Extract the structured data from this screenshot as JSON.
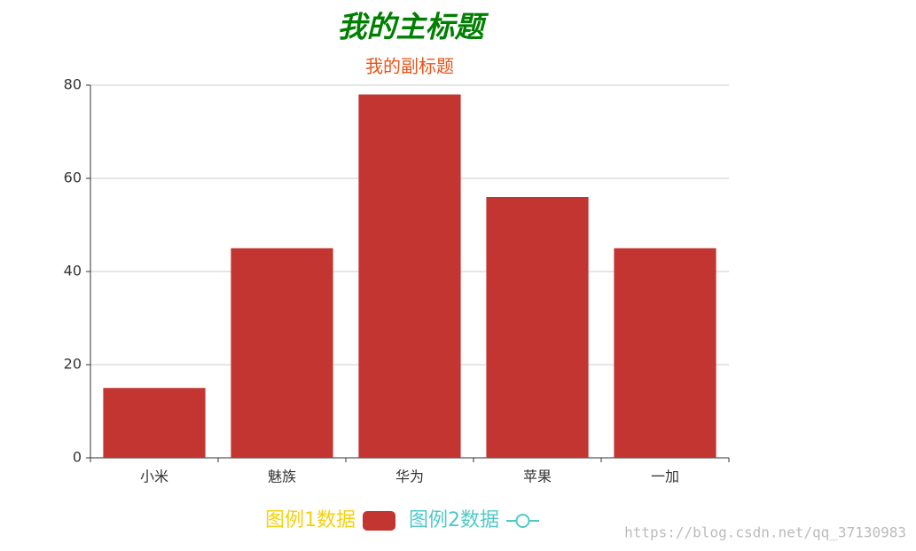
{
  "chart_data": {
    "type": "bar",
    "title": "我的主标题",
    "title_color": "#008000",
    "subtitle": "我的副标题",
    "subtitle_color": "#e8541a",
    "categories": [
      "小米",
      "魅族",
      "华为",
      "苹果",
      "一加"
    ],
    "series": [
      {
        "name": "图例1数据",
        "type": "bar",
        "color": "#c23531",
        "legend_text_color": "#f5d10c",
        "values": [
          15,
          45,
          78,
          56,
          45
        ]
      },
      {
        "name": "图例2数据",
        "type": "line",
        "color": "#4fc9c7",
        "legend_text_color": "#4fc9c7"
      }
    ],
    "ylim": [
      0,
      80
    ],
    "yticks": [
      0,
      20,
      40,
      60,
      80
    ],
    "grid": true,
    "watermark": "https://blog.csdn.net/qq_37130983"
  }
}
